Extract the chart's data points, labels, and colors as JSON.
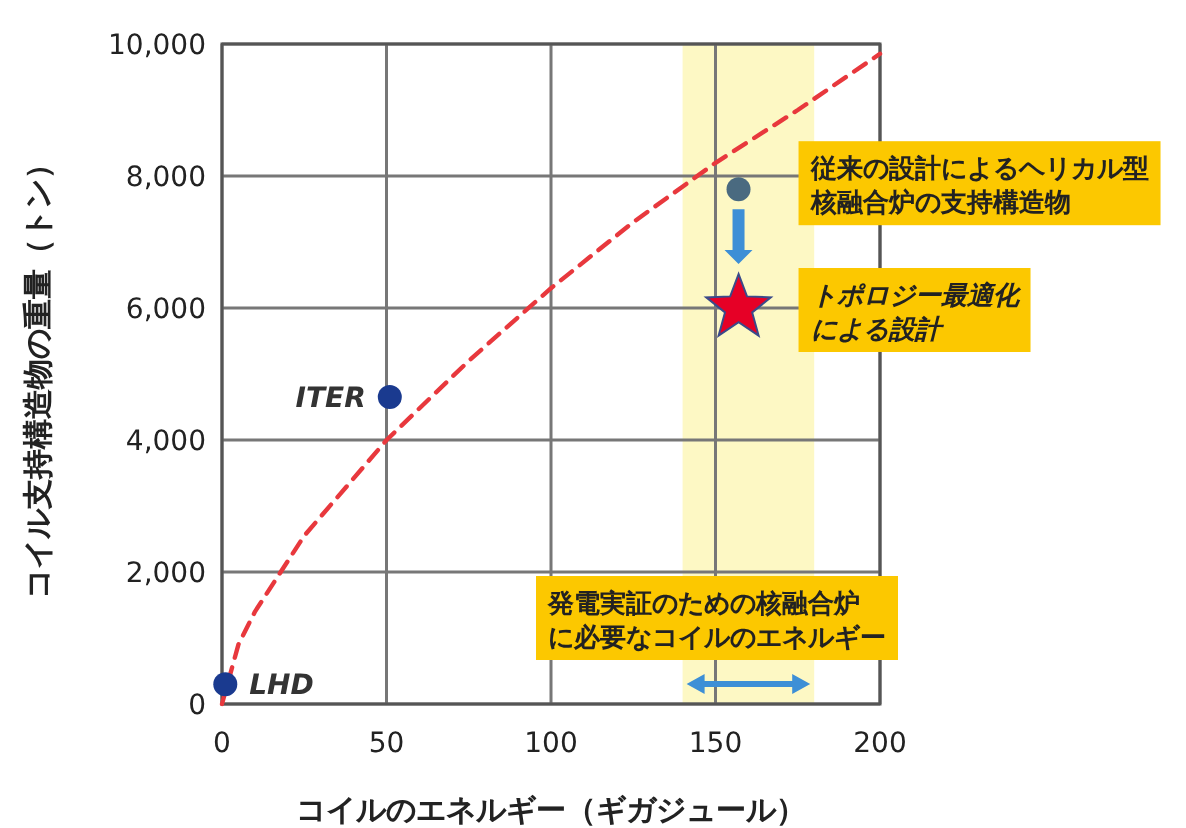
{
  "chart_data": {
    "type": "scatter",
    "xlabel": "コイルのエネルギー（ギガジュール）",
    "ylabel": "コイル支持構造物の重量（トン）",
    "xlim": [
      0,
      200
    ],
    "ylim": [
      0,
      10000
    ],
    "xticks": [
      0,
      50,
      100,
      150,
      200
    ],
    "yticks": [
      0,
      {
        "value": 2000,
        "label": "2,000"
      },
      {
        "value": 4000,
        "label": "4,000"
      },
      {
        "value": 6000,
        "label": "6,000"
      },
      {
        "value": 8000,
        "label": "8,000"
      },
      {
        "value": 10000,
        "label": "10,000"
      }
    ],
    "grid": true,
    "legend": false,
    "bands": [
      {
        "axis": "x",
        "from": 140,
        "to": 180,
        "color": "#fdf8c4"
      }
    ],
    "series": [
      {
        "type": "line",
        "color": "#e8383d",
        "line_style": "dashed",
        "marker": "none",
        "x": [
          0,
          5,
          10,
          25,
          50,
          75,
          100,
          125,
          150,
          175,
          200
        ],
        "values": [
          0,
          900,
          1400,
          2550,
          4000,
          5200,
          6300,
          7300,
          8200,
          9000,
          9850
        ]
      },
      {
        "name": "LHD",
        "color": "#1a3a8f",
        "marker": "circle",
        "x": [
          1
        ],
        "values": [
          300
        ]
      },
      {
        "name": "ITER",
        "color": "#1a3a8f",
        "marker": "circle",
        "x": [
          51
        ],
        "values": [
          4650
        ]
      },
      {
        "color": "#4a6a80",
        "marker": "circle",
        "x": [
          157
        ],
        "values": [
          7800
        ]
      },
      {
        "color": "#e60026",
        "marker": "star",
        "x": [
          157
        ],
        "values": [
          6000
        ]
      }
    ],
    "annotations": [
      {
        "text": "従来の設計によるヘリカル型核融合炉の支持構造物",
        "x": 157,
        "y": 7800
      },
      {
        "text": "トポロジー最適化による設計",
        "x": 157,
        "y": 6000
      },
      "発電実証のための核融合炉に必要なコイルのエネルギー"
    ]
  }
}
